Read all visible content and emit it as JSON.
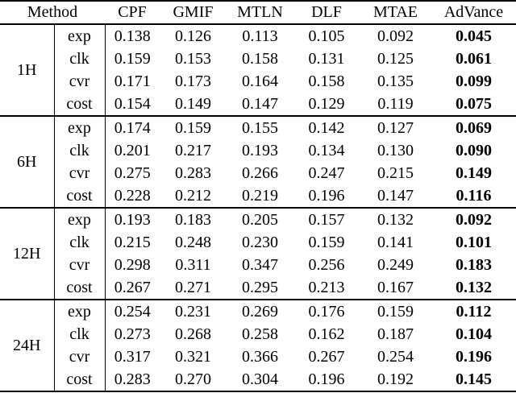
{
  "colors": {
    "background": "#ffffff",
    "text": "#000000",
    "rule": "#000000"
  },
  "chart_data": {
    "type": "table",
    "columns": [
      "Method",
      "CPF",
      "GMIF",
      "MTLN",
      "DLF",
      "MTAE",
      "AdVance"
    ],
    "bold_column": "AdVance",
    "row_groups": [
      {
        "label": "1H",
        "rows": [
          {
            "metric": "exp",
            "values": [
              "0.138",
              "0.126",
              "0.113",
              "0.105",
              "0.092",
              "0.045"
            ]
          },
          {
            "metric": "clk",
            "values": [
              "0.159",
              "0.153",
              "0.158",
              "0.131",
              "0.125",
              "0.061"
            ]
          },
          {
            "metric": "cvr",
            "values": [
              "0.171",
              "0.173",
              "0.164",
              "0.158",
              "0.135",
              "0.099"
            ]
          },
          {
            "metric": "cost",
            "values": [
              "0.154",
              "0.149",
              "0.147",
              "0.129",
              "0.119",
              "0.075"
            ]
          }
        ]
      },
      {
        "label": "6H",
        "rows": [
          {
            "metric": "exp",
            "values": [
              "0.174",
              "0.159",
              "0.155",
              "0.142",
              "0.127",
              "0.069"
            ]
          },
          {
            "metric": "clk",
            "values": [
              "0.201",
              "0.217",
              "0.193",
              "0.134",
              "0.130",
              "0.090"
            ]
          },
          {
            "metric": "cvr",
            "values": [
              "0.275",
              "0.283",
              "0.266",
              "0.247",
              "0.215",
              "0.149"
            ]
          },
          {
            "metric": "cost",
            "values": [
              "0.228",
              "0.212",
              "0.219",
              "0.196",
              "0.147",
              "0.116"
            ]
          }
        ]
      },
      {
        "label": "12H",
        "rows": [
          {
            "metric": "exp",
            "values": [
              "0.193",
              "0.183",
              "0.205",
              "0.157",
              "0.132",
              "0.092"
            ]
          },
          {
            "metric": "clk",
            "values": [
              "0.215",
              "0.248",
              "0.230",
              "0.159",
              "0.141",
              "0.101"
            ]
          },
          {
            "metric": "cvr",
            "values": [
              "0.298",
              "0.311",
              "0.347",
              "0.256",
              "0.249",
              "0.183"
            ]
          },
          {
            "metric": "cost",
            "values": [
              "0.267",
              "0.271",
              "0.295",
              "0.213",
              "0.167",
              "0.132"
            ]
          }
        ]
      },
      {
        "label": "24H",
        "rows": [
          {
            "metric": "exp",
            "values": [
              "0.254",
              "0.231",
              "0.269",
              "0.176",
              "0.159",
              "0.112"
            ]
          },
          {
            "metric": "clk",
            "values": [
              "0.273",
              "0.268",
              "0.258",
              "0.162",
              "0.187",
              "0.104"
            ]
          },
          {
            "metric": "cvr",
            "values": [
              "0.317",
              "0.321",
              "0.366",
              "0.267",
              "0.254",
              "0.196"
            ]
          },
          {
            "metric": "cost",
            "values": [
              "0.283",
              "0.270",
              "0.304",
              "0.196",
              "0.192",
              "0.145"
            ]
          }
        ]
      }
    ]
  }
}
